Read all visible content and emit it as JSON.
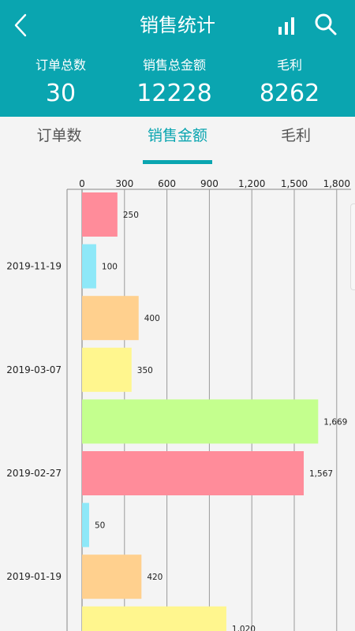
{
  "header": {
    "title": "销售统计",
    "back_icon": "chevron-left-icon",
    "chart_icon": "bar-chart-icon",
    "search_icon": "search-icon"
  },
  "stats": [
    {
      "label": "订单总数",
      "value": "30"
    },
    {
      "label": "销售总金额",
      "value": "12228"
    },
    {
      "label": "毛利",
      "value": "8262"
    }
  ],
  "tabs": [
    {
      "label": "订单数"
    },
    {
      "label": "销售金额",
      "active": true
    },
    {
      "label": "毛利"
    }
  ],
  "colors": {
    "accent": "#0aa5b0",
    "bar_palette": [
      "#ff8c9a",
      "#8ee8f8",
      "#ffd08e",
      "#fff68e",
      "#c4ff8e"
    ]
  },
  "chart_data": {
    "type": "bar",
    "orientation": "horizontal",
    "x_ticks": [
      "0",
      "300",
      "600",
      "900",
      "1,200",
      "1,500",
      "1,800"
    ],
    "xlim": [
      0,
      1800
    ],
    "date_labels": [
      {
        "label": "2019-11-19",
        "row": 1
      },
      {
        "label": "2019-03-07",
        "row": 3
      },
      {
        "label": "2019-02-27",
        "row": 5
      },
      {
        "label": "2019-01-19",
        "row": 7
      }
    ],
    "bars": [
      {
        "value": 250,
        "label": "250"
      },
      {
        "value": 100,
        "label": "100"
      },
      {
        "value": 400,
        "label": "400"
      },
      {
        "value": 350,
        "label": "350"
      },
      {
        "value": 1669,
        "label": "1,669"
      },
      {
        "value": 1567,
        "label": "1,567"
      },
      {
        "value": 50,
        "label": "50"
      },
      {
        "value": 420,
        "label": "420"
      },
      {
        "value": 1020,
        "label": "1,020"
      }
    ]
  }
}
